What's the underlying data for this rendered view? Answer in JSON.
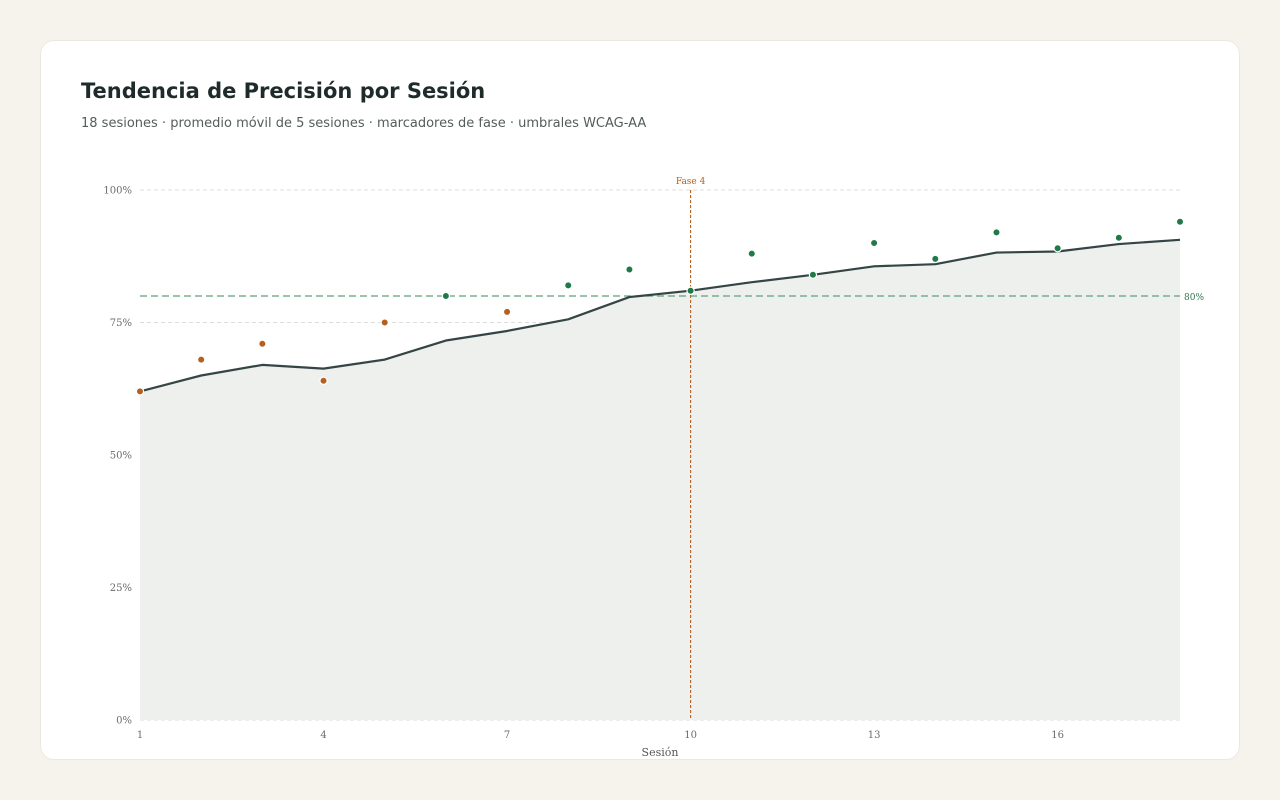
{
  "header": {
    "title": "Tendencia de Precisión por Sesión",
    "subtitle": "18 sesiones · promedio móvil de 5 sesiones · marcadores de fase · umbrales WCAG-AA"
  },
  "chart_data": {
    "type": "line",
    "title": "Tendencia de Precisión por Sesión",
    "subtitle": "18 sesiones · promedio móvil de 5 sesiones · marcadores de fase · umbrales WCAG-AA",
    "xlabel": "Sesión",
    "ylabel": "",
    "x": [
      1,
      2,
      3,
      4,
      5,
      6,
      7,
      8,
      9,
      10,
      11,
      12,
      13,
      14,
      15,
      16,
      17,
      18
    ],
    "xlim": [
      1,
      18
    ],
    "ylim": [
      0,
      100
    ],
    "x_ticks": [
      1,
      4,
      7,
      10,
      13,
      16
    ],
    "y_ticks": [
      "0%",
      "25%",
      "50%",
      "75%",
      "100%"
    ],
    "y_tick_values": [
      0,
      25,
      50,
      75,
      100
    ],
    "grid": true,
    "series": [
      {
        "kind": "scatter",
        "values": [
          62,
          68,
          71,
          64,
          75,
          80,
          77,
          82,
          85,
          81,
          88,
          84,
          90,
          87,
          92,
          89,
          91,
          94
        ]
      },
      {
        "kind": "line-area",
        "values": [
          62,
          65,
          67,
          66.3,
          68,
          71.6,
          73.4,
          75.6,
          79.8,
          81,
          82.6,
          84,
          85.6,
          86,
          88.2,
          88.4,
          89.8,
          90.6
        ]
      }
    ],
    "threshold": {
      "value": 80,
      "label": "80%"
    },
    "phase_markers": [
      {
        "x": 10,
        "label": "Fase 4"
      }
    ],
    "colors": {
      "below_threshold": "#b5601f",
      "above_threshold": "#1f7a47",
      "line": "#354545",
      "area": "#eef0ee",
      "threshold": "#5fa07a",
      "phase": "#b5601f",
      "grid": "#dcdcdc"
    }
  }
}
